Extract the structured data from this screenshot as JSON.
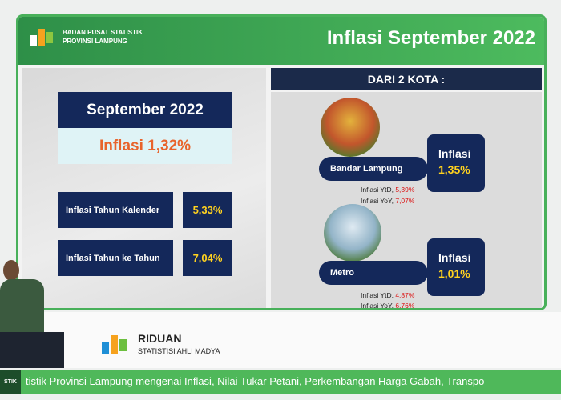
{
  "header": {
    "org_line1": "BADAN PUSAT STATISTIK",
    "org_line2": "PROVINSI LAMPUNG",
    "title": "Inflasi September 2022"
  },
  "province": {
    "period": "September 2022",
    "headline": "Inflasi 1,32%",
    "rows": [
      {
        "label": "Inflasi Tahun Kalender",
        "value": "5,33%"
      },
      {
        "label": "Inflasi Tahun ke Tahun",
        "value": "7,04%"
      }
    ]
  },
  "cities": {
    "heading": "DARI 2 KOTA :",
    "items": [
      {
        "name": "Bandar Lampung",
        "inflasi_label": "Inflasi",
        "inflasi": "1,35%",
        "ytd_label": "Inflasi YtD,",
        "ytd": "5,39%",
        "yoy_label": "Inflasi YoY,",
        "yoy": "7,07%"
      },
      {
        "name": "Metro",
        "inflasi_label": "Inflasi",
        "inflasi": "1,01%",
        "ytd_label": "Inflasi YtD,",
        "ytd": "4,87%",
        "yoy_label": "Inflasi YoY,",
        "yoy": "6,76%"
      }
    ]
  },
  "lower_third": {
    "name": "RIDUAN",
    "role": "STATISTISI AHLI MADYA"
  },
  "ticker": {
    "tag": "STIK",
    "text": "tistik Provinsi Lampung mengenai Inflasi, Nilai Tukar Petani, Perkembangan Harga Gabah, Transpo"
  }
}
